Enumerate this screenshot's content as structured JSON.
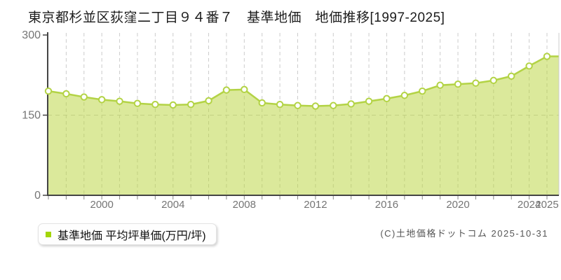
{
  "title": "東京都杉並区荻窪二丁目９４番７　基準地価　地価推移[1997-2025]",
  "legend": {
    "label": "基準地価 平均坪単価(万円/坪)",
    "marker_color": "#a3d606"
  },
  "copyright": "(C)土地価格ドットコム 2025-10-31",
  "chart_data": {
    "type": "area",
    "title": "東京都杉並区荻窪二丁目９４番７ 基準地価 地価推移[1997-2025]",
    "series_name": "基準地価 平均坪単価(万円/坪)",
    "unit": "万円/坪",
    "x": [
      1997,
      1998,
      1999,
      2000,
      2001,
      2002,
      2003,
      2004,
      2005,
      2006,
      2007,
      2008,
      2009,
      2010,
      2011,
      2012,
      2013,
      2014,
      2015,
      2016,
      2017,
      2018,
      2019,
      2020,
      2021,
      2022,
      2023,
      2024,
      2025
    ],
    "values": [
      195,
      190,
      184,
      179,
      176,
      172,
      170,
      169,
      170,
      177,
      197,
      198,
      173,
      170,
      168,
      167,
      168,
      171,
      176,
      181,
      187,
      195,
      206,
      208,
      210,
      215,
      223,
      242,
      260
    ],
    "ylim": [
      0,
      300
    ],
    "yticks": [
      0,
      150,
      300
    ],
    "xtick_labeled_years": [
      2000,
      2004,
      2008,
      2012,
      2016,
      2020,
      2024,
      2025
    ],
    "grid": true,
    "legend_position": "bottom-left",
    "colors": {
      "line": "#b3d345",
      "fill": "#b7d337",
      "fill_opacity": 0.5,
      "point_fill": "#ffffff",
      "grid": "#cccccc",
      "axis": "#444444",
      "tick": "#888888",
      "tick_label": "#757575",
      "plot_border": "#cccccc"
    }
  }
}
